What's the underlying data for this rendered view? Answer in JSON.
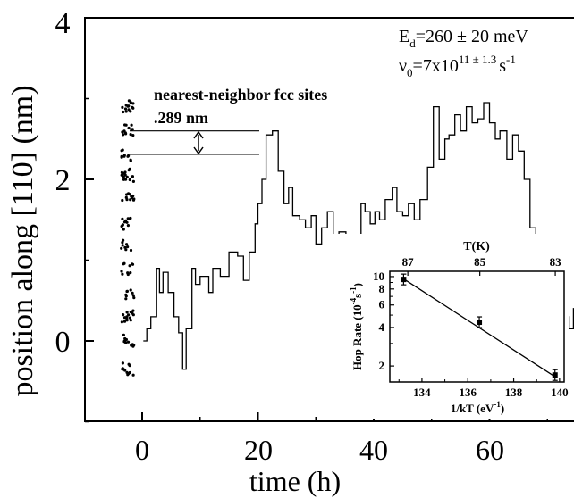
{
  "chart_data": [
    {
      "type": "line",
      "xlabel": "time (h)",
      "ylabel": "position along [110] (nm)",
      "xlim": [
        -8,
        76
      ],
      "ylim": [
        -1,
        4
      ],
      "x_ticks": [
        "0",
        "20",
        "40",
        "60"
      ],
      "y_ticks": [
        "0",
        "2",
        "4"
      ],
      "energy_label": "E",
      "energy_sub": "d",
      "energy_value": "=260 ± 20 meV",
      "prefactor_label": "ν",
      "prefactor_sub": "0",
      "prefactor_value": "=7x10",
      "prefactor_exp": "11 ± 1.3",
      "prefactor_unit": "s",
      "prefactor_unit_exp": "-1",
      "annotation_title": "nearest-neighbor fcc sites",
      "annotation_spacing": ".289 nm",
      "sites_lines_y": [
        2.6,
        2.31
      ],
      "trace": {
        "x": [
          0.2,
          0.8,
          1.5,
          2.5,
          3.0,
          3.6,
          4.5,
          5.5,
          6.3,
          7.0,
          7.6,
          8.6,
          9.2,
          10.0,
          11.5,
          12.2,
          13.5,
          15.0,
          16.5,
          17.5,
          18.5,
          19.5,
          20.0,
          20.7,
          21.4,
          22.5,
          23.5,
          24.5,
          25.3,
          26.0,
          27.2,
          28.2,
          29.2,
          30.0,
          31.0,
          32.0,
          33.0,
          34.0,
          35.2,
          36.0,
          36.8,
          37.8,
          38.5,
          39.4,
          40.2,
          41.0,
          42.0,
          43.2,
          44.0,
          45.0,
          46.0,
          47.0,
          48.0,
          49.3,
          50.3,
          51.3,
          52.3,
          53.0,
          54.0,
          55.0,
          56.0,
          57.0,
          58.0,
          59.0,
          60.0,
          61.0,
          61.8,
          63.0,
          64.0,
          65.0,
          66.0,
          67.0,
          68.0,
          69.0,
          70.0,
          70.8,
          71.5,
          72.2,
          72.8,
          73.6,
          74.5,
          75.5
        ],
        "y": [
          0.0,
          0.15,
          0.3,
          0.9,
          0.6,
          0.85,
          0.6,
          0.3,
          0.1,
          -0.35,
          0.15,
          0.9,
          0.7,
          0.8,
          0.6,
          0.9,
          0.8,
          1.1,
          1.05,
          0.75,
          1.1,
          1.45,
          1.7,
          2.0,
          2.55,
          2.6,
          2.1,
          1.7,
          1.9,
          1.55,
          1.5,
          1.4,
          1.55,
          1.2,
          1.4,
          1.6,
          1.3,
          1.35,
          1.1,
          0.9,
          1.0,
          1.7,
          1.6,
          1.45,
          1.6,
          1.5,
          1.75,
          1.9,
          1.6,
          1.55,
          1.7,
          1.5,
          1.75,
          2.15,
          2.9,
          2.25,
          2.5,
          2.55,
          2.8,
          2.6,
          2.9,
          2.7,
          2.75,
          2.95,
          2.7,
          2.5,
          2.6,
          2.25,
          2.55,
          2.35,
          2.0,
          1.4,
          1.0,
          1.3,
          0.8,
          0.3,
          0.9,
          0.5,
          0.3,
          0.15,
          0.4,
          -0.1
        ]
      },
      "histogram": {
        "x": [
          -2.5
        ],
        "clusters_y": [
          -0.35,
          0.0,
          0.3,
          0.6,
          0.9,
          1.2,
          1.45,
          1.75,
          2.05,
          2.3,
          2.6,
          2.9
        ]
      }
    },
    {
      "type": "scatter",
      "inset": true,
      "xlabel": "1/kT (eV",
      "xlabel_exp": "-1",
      "xlabel_close": ")",
      "ylabel": "Hop Rate (10",
      "ylabel_exp": "-4",
      "ylabel_unit": "s",
      "ylabel_unit_exp": "-1",
      "ylabel_close": ")",
      "top_axis_label": "T(K)",
      "top_ticks": [
        "87",
        "85",
        "83"
      ],
      "top_ticks_value": [
        87,
        85,
        83
      ],
      "x_ticks": [
        "134",
        "136",
        "138",
        "140"
      ],
      "y_ticks": [
        "2",
        "4",
        "6",
        "8",
        "10"
      ],
      "xlim": [
        132.6,
        140.2
      ],
      "ylim": [
        1.5,
        11
      ],
      "log_y": true,
      "points": [
        {
          "x": 133.2,
          "y": 9.5
        },
        {
          "x": 136.5,
          "y": 4.4
        },
        {
          "x": 139.8,
          "y": 1.7
        }
      ],
      "fit_line": {
        "x": [
          133.2,
          139.8
        ],
        "y": [
          9.6,
          1.65
        ]
      }
    }
  ]
}
